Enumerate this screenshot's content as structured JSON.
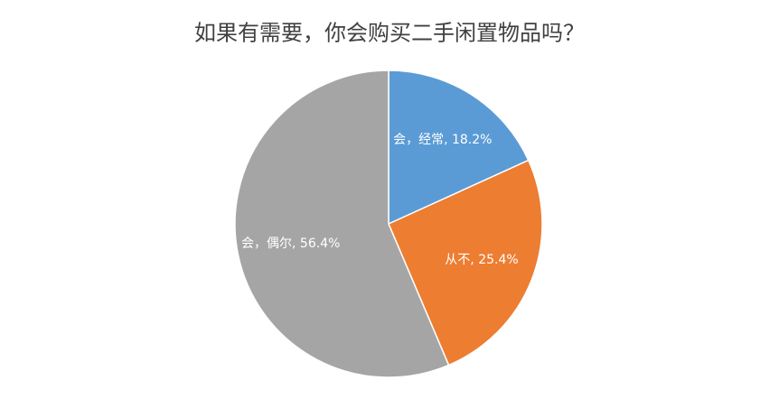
{
  "chart_data": {
    "type": "pie",
    "title": "如果有需要，你会购买二手闲置物品吗？",
    "values": [
      18.2,
      25.4,
      56.4
    ],
    "value_labels": [
      "会，经常, 18.2%",
      "从不, 25.4%",
      "会，偶尔, 56.4%"
    ],
    "colors": [
      "#5b9bd5",
      "#ed7d31",
      "#a5a5a5"
    ]
  }
}
